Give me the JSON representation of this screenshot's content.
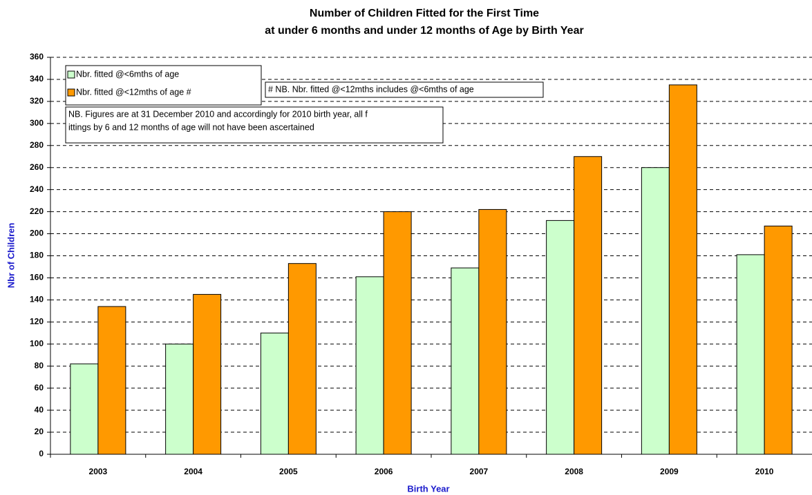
{
  "chart_data": {
    "type": "bar",
    "title": [
      "Number of Children Fitted for the First Time",
      "at under 6 months and under 12 months of Age by Birth Year"
    ],
    "x_label": "Birth Year",
    "y_label": "Nbr of Children",
    "categories": [
      "2003",
      "2004",
      "2005",
      "2006",
      "2007",
      "2008",
      "2009",
      "2010"
    ],
    "series": [
      {
        "name": "Nbr. fitted @<6mths of age",
        "color": "#ccffcc",
        "values": [
          82,
          100,
          110,
          161,
          169,
          212,
          260,
          181
        ]
      },
      {
        "name": "Nbr. fitted @<12mths of age  #",
        "color": "#ff9900",
        "values": [
          134,
          145,
          173,
          220,
          222,
          270,
          335,
          207
        ]
      }
    ],
    "ylim": [
      0,
      360
    ],
    "yticks": [
      0,
      20,
      40,
      60,
      80,
      100,
      120,
      140,
      160,
      180,
      200,
      220,
      240,
      260,
      280,
      300,
      320,
      340,
      360
    ],
    "grid": true,
    "annotations": [
      {
        "lines": [
          "# NB. Nbr. fitted @<12mths includes @<6mths of age"
        ]
      },
      {
        "lines": [
          "NB. Figures are at 31 December 2010 and accordingly for 2010 birth year, all f",
          "ittings by 6 and 12 months of age will not have been ascertained"
        ]
      }
    ]
  }
}
